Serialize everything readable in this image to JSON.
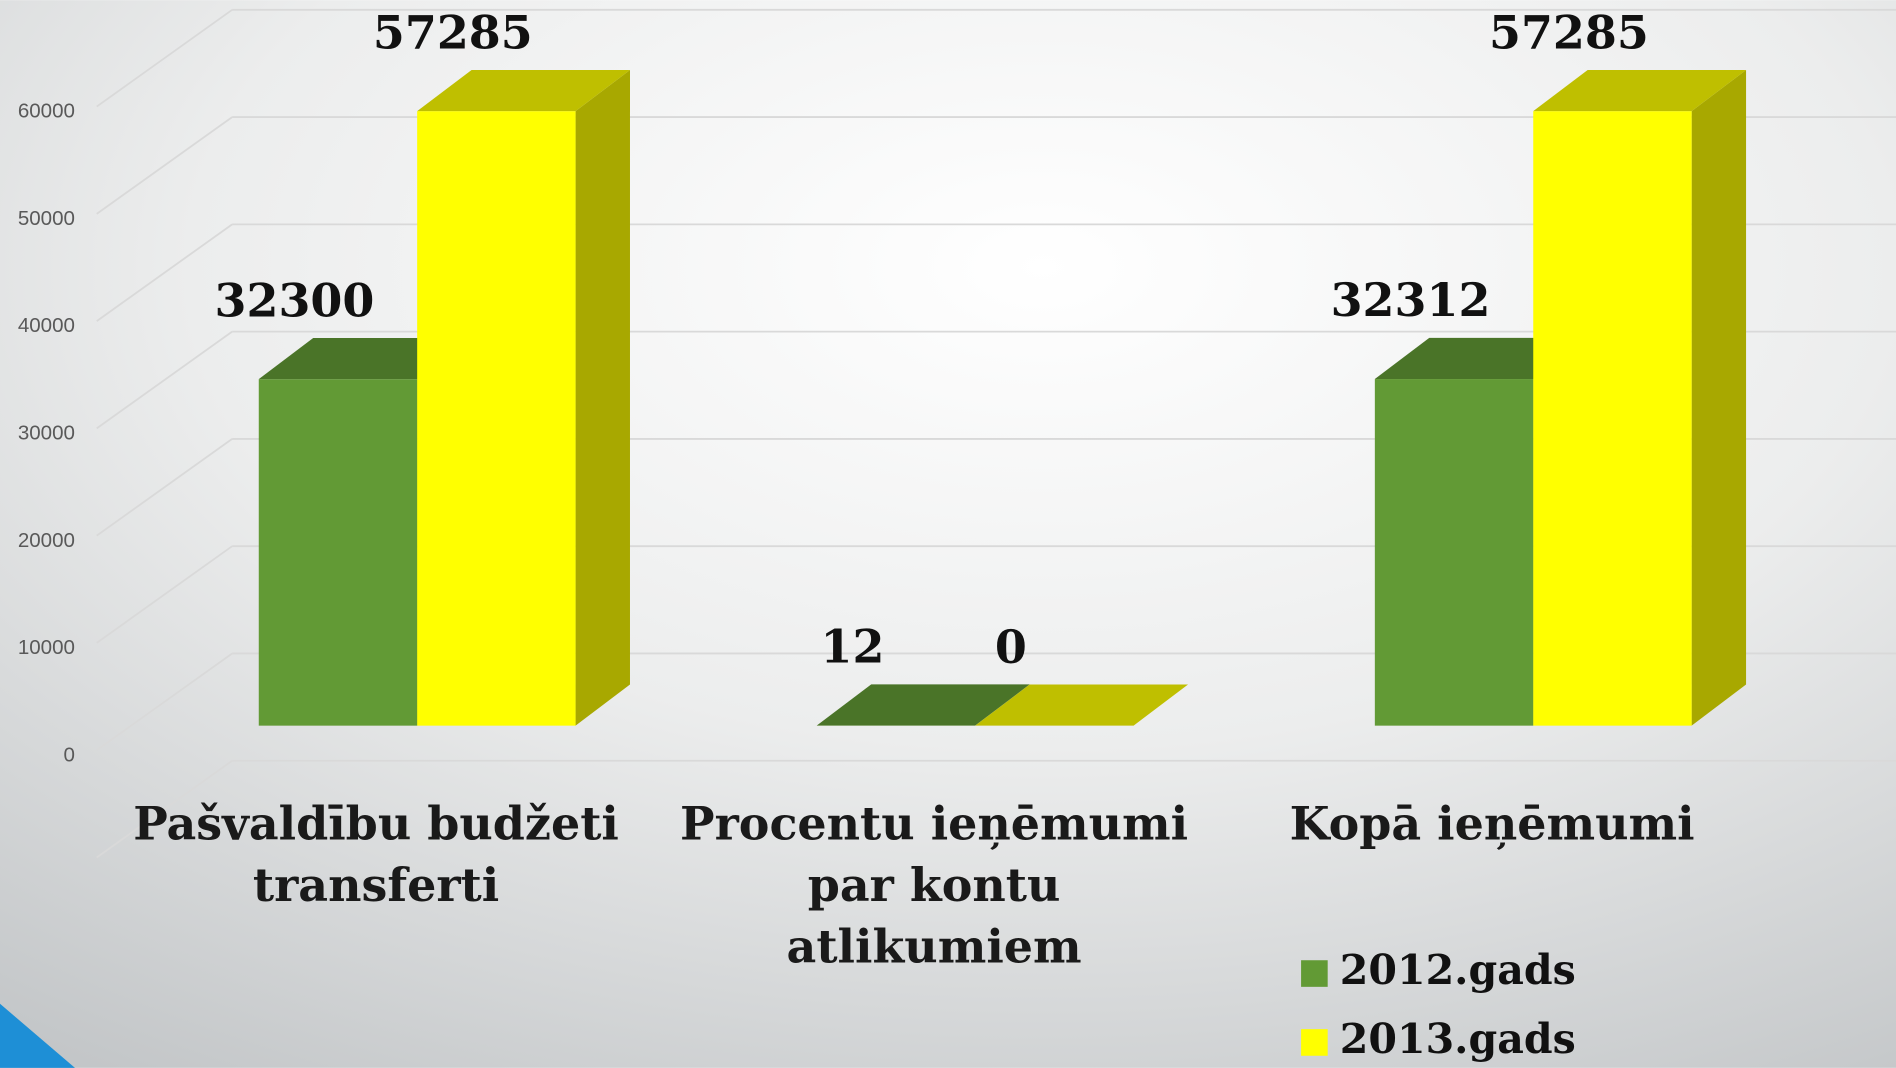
{
  "chart_data": {
    "type": "bar3d",
    "categories": [
      "Pašvaldību budžeti transferti",
      "Procentu ieņēmumi par kontu atlikumiem",
      "Kopā ieņēmumi"
    ],
    "series": [
      {
        "name": "2012.gads",
        "color": "#629a35",
        "values": [
          32300,
          12,
          32312
        ]
      },
      {
        "name": "2013.gads",
        "color": "#ffff00",
        "values": [
          57285,
          0,
          57285
        ]
      }
    ],
    "ylim": [
      0,
      70000
    ],
    "yticks": [
      0,
      10000,
      20000,
      30000,
      40000,
      50000,
      60000
    ],
    "grid": true
  }
}
